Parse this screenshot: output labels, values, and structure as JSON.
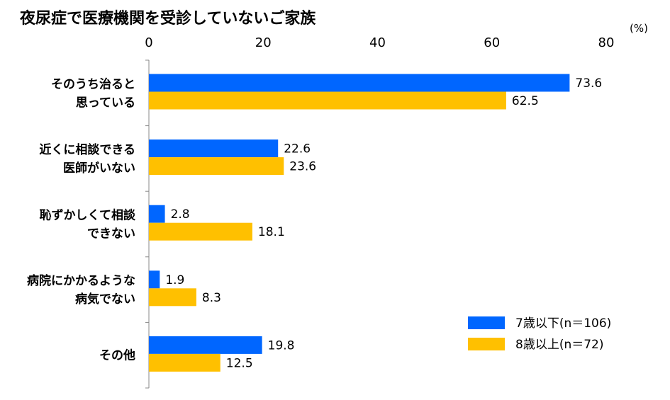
{
  "chart_data": {
    "type": "bar",
    "orientation": "horizontal",
    "title": "夜尿症で医療機関を受診していないご家族",
    "unit": "(%)",
    "xlim": [
      0,
      80
    ],
    "ticks": [
      "0",
      "20",
      "40",
      "60",
      "80"
    ],
    "tick_values": [
      0,
      20,
      40,
      60,
      80
    ],
    "grid": false,
    "legend_position": "bottom-right",
    "categories": [
      [
        "そのうち治ると",
        "思っている"
      ],
      [
        "近くに相談できる",
        "医師がいない"
      ],
      [
        "恥ずかしくて相談",
        "できない"
      ],
      [
        "病院にかかるような",
        "病気でない"
      ],
      [
        "その他"
      ]
    ],
    "series": [
      {
        "name": "7歳以下(n＝106)",
        "color": "#0066ff",
        "values": [
          73.6,
          22.6,
          2.8,
          1.9,
          19.8
        ],
        "labels": [
          "73.6",
          "22.6",
          "2.8",
          "1.9",
          "19.8"
        ]
      },
      {
        "name": "8歳以上(n＝72)",
        "color": "#ffc000",
        "values": [
          62.5,
          23.6,
          18.1,
          8.3,
          12.5
        ],
        "labels": [
          "62.5",
          "23.6",
          "18.1",
          "8.3",
          "12.5"
        ]
      }
    ]
  }
}
